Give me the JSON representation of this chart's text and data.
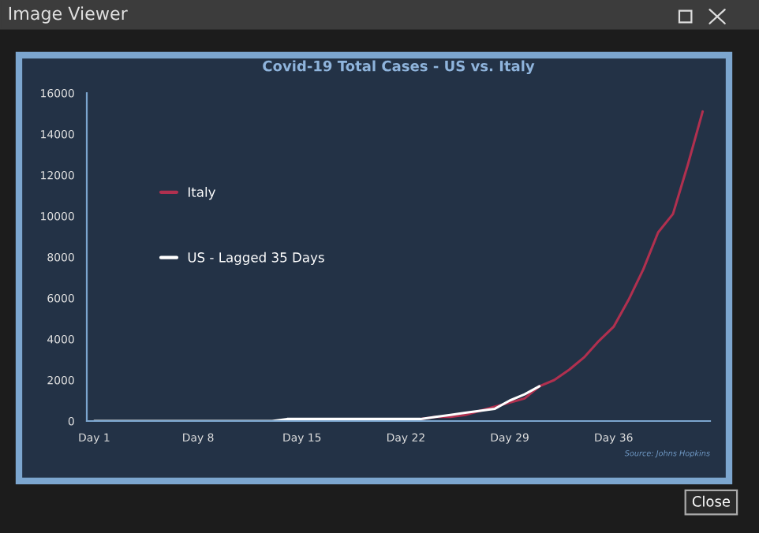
{
  "chart_data": {
    "type": "line",
    "title": "Covid-19 Total Cases - US vs. Italy",
    "categories": [
      "Day 1",
      null,
      null,
      null,
      null,
      null,
      null,
      "Day 8",
      null,
      null,
      null,
      null,
      null,
      null,
      "Day 15",
      null,
      null,
      null,
      null,
      null,
      null,
      "Day 22",
      null,
      null,
      null,
      null,
      null,
      null,
      "Day 29",
      null,
      null,
      null,
      null,
      null,
      null,
      "Day 36",
      null,
      null,
      null,
      null,
      null,
      null
    ],
    "series": [
      {
        "name": "Italy",
        "color": "#b0304f",
        "values": [
          null,
          null,
          null,
          null,
          null,
          null,
          null,
          null,
          null,
          null,
          null,
          null,
          null,
          null,
          null,
          null,
          null,
          null,
          null,
          null,
          null,
          null,
          100,
          200,
          200,
          300,
          500,
          700,
          900,
          1100,
          1700,
          2000,
          2500,
          3100,
          3900,
          4600,
          5900,
          7400,
          9200,
          10100,
          12500,
          15100
        ]
      },
      {
        "name": "US - Lagged 35 Days",
        "color": "#ffffff",
        "values": [
          0,
          0,
          0,
          0,
          0,
          0,
          0,
          0,
          0,
          0,
          0,
          0,
          0,
          100,
          100,
          100,
          100,
          100,
          100,
          100,
          100,
          100,
          100,
          200,
          300,
          400,
          500,
          600,
          1000,
          1300,
          1700,
          null,
          null,
          null,
          null,
          null,
          null,
          null,
          null,
          null,
          null,
          null
        ]
      }
    ],
    "ylim": [
      0,
      16000
    ],
    "yticks": [
      0,
      2000,
      4000,
      6000,
      8000,
      10000,
      12000,
      14000,
      16000
    ],
    "grid": false,
    "legend": "top left",
    "marker": "none",
    "line_style": "solid",
    "annotations": [
      "Source: Johns Hopkins",
      "Image Viewer",
      "Close"
    ]
  }
}
